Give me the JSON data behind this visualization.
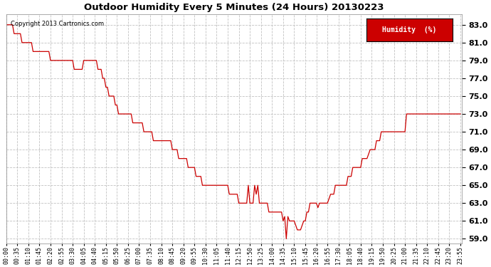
{
  "title": "Outdoor Humidity Every 5 Minutes (24 Hours) 20130223",
  "copyright": "Copyright 2013 Cartronics.com",
  "legend_label": "Humidity  (%)",
  "legend_bg": "#cc0000",
  "legend_text_color": "#ffffff",
  "line_color": "#cc0000",
  "bg_color": "#ffffff",
  "grid_color": "#bbbbbb",
  "ylim": [
    58.5,
    84.2
  ],
  "yticks": [
    59.0,
    61.0,
    63.0,
    65.0,
    67.0,
    69.0,
    71.0,
    73.0,
    75.0,
    77.0,
    79.0,
    81.0,
    83.0
  ],
  "xtick_labels": [
    "00:00",
    "00:35",
    "01:10",
    "01:45",
    "02:20",
    "02:55",
    "03:30",
    "04:05",
    "04:40",
    "05:15",
    "05:50",
    "06:25",
    "07:00",
    "07:35",
    "08:10",
    "08:45",
    "09:20",
    "09:55",
    "10:30",
    "11:05",
    "11:40",
    "12:15",
    "12:50",
    "13:25",
    "14:00",
    "14:35",
    "15:10",
    "15:45",
    "16:20",
    "16:55",
    "17:30",
    "18:05",
    "18:40",
    "19:15",
    "19:50",
    "20:25",
    "21:00",
    "21:35",
    "22:10",
    "22:45",
    "23:20",
    "23:55"
  ],
  "humidity_data": [
    [
      0,
      83.0
    ],
    [
      5,
      83.0
    ],
    [
      10,
      83.0
    ],
    [
      15,
      83.0
    ],
    [
      20,
      83.0
    ],
    [
      25,
      82.0
    ],
    [
      30,
      82.0
    ],
    [
      35,
      82.0
    ],
    [
      40,
      82.0
    ],
    [
      45,
      82.0
    ],
    [
      50,
      81.0
    ],
    [
      55,
      81.0
    ],
    [
      60,
      81.0
    ],
    [
      65,
      81.0
    ],
    [
      70,
      81.0
    ],
    [
      75,
      81.0
    ],
    [
      80,
      81.0
    ],
    [
      85,
      80.0
    ],
    [
      90,
      80.0
    ],
    [
      95,
      80.0
    ],
    [
      100,
      80.0
    ],
    [
      105,
      80.0
    ],
    [
      110,
      80.0
    ],
    [
      115,
      80.0
    ],
    [
      120,
      80.0
    ],
    [
      125,
      80.0
    ],
    [
      130,
      80.0
    ],
    [
      135,
      80.0
    ],
    [
      140,
      79.0
    ],
    [
      145,
      79.0
    ],
    [
      150,
      79.0
    ],
    [
      155,
      79.0
    ],
    [
      160,
      79.0
    ],
    [
      165,
      79.0
    ],
    [
      170,
      79.0
    ],
    [
      175,
      79.0
    ],
    [
      180,
      79.0
    ],
    [
      185,
      79.0
    ],
    [
      190,
      79.0
    ],
    [
      195,
      79.0
    ],
    [
      200,
      79.0
    ],
    [
      205,
      79.0
    ],
    [
      210,
      79.0
    ],
    [
      215,
      78.0
    ],
    [
      220,
      78.0
    ],
    [
      225,
      78.0
    ],
    [
      230,
      78.0
    ],
    [
      235,
      78.0
    ],
    [
      240,
      78.0
    ],
    [
      245,
      79.0
    ],
    [
      250,
      79.0
    ],
    [
      255,
      79.0
    ],
    [
      260,
      79.0
    ],
    [
      265,
      79.0
    ],
    [
      270,
      79.0
    ],
    [
      275,
      79.0
    ],
    [
      280,
      79.0
    ],
    [
      285,
      79.0
    ],
    [
      290,
      78.0
    ],
    [
      295,
      78.0
    ],
    [
      300,
      78.0
    ],
    [
      305,
      77.0
    ],
    [
      310,
      77.0
    ],
    [
      315,
      76.0
    ],
    [
      320,
      76.0
    ],
    [
      325,
      75.0
    ],
    [
      330,
      75.0
    ],
    [
      335,
      75.0
    ],
    [
      340,
      75.0
    ],
    [
      345,
      74.0
    ],
    [
      350,
      74.0
    ],
    [
      355,
      73.0
    ],
    [
      360,
      73.0
    ],
    [
      365,
      73.0
    ],
    [
      370,
      73.0
    ],
    [
      375,
      73.0
    ],
    [
      380,
      73.0
    ],
    [
      385,
      73.0
    ],
    [
      390,
      73.0
    ],
    [
      395,
      73.0
    ],
    [
      400,
      72.0
    ],
    [
      405,
      72.0
    ],
    [
      410,
      72.0
    ],
    [
      415,
      72.0
    ],
    [
      420,
      72.0
    ],
    [
      425,
      72.0
    ],
    [
      430,
      72.0
    ],
    [
      435,
      71.0
    ],
    [
      440,
      71.0
    ],
    [
      445,
      71.0
    ],
    [
      450,
      71.0
    ],
    [
      455,
      71.0
    ],
    [
      460,
      71.0
    ],
    [
      465,
      70.0
    ],
    [
      470,
      70.0
    ],
    [
      475,
      70.0
    ],
    [
      480,
      70.0
    ],
    [
      485,
      70.0
    ],
    [
      490,
      70.0
    ],
    [
      495,
      70.0
    ],
    [
      500,
      70.0
    ],
    [
      505,
      70.0
    ],
    [
      510,
      70.0
    ],
    [
      515,
      70.0
    ],
    [
      520,
      70.0
    ],
    [
      525,
      69.0
    ],
    [
      530,
      69.0
    ],
    [
      535,
      69.0
    ],
    [
      540,
      69.0
    ],
    [
      545,
      68.0
    ],
    [
      550,
      68.0
    ],
    [
      555,
      68.0
    ],
    [
      560,
      68.0
    ],
    [
      565,
      68.0
    ],
    [
      570,
      68.0
    ],
    [
      575,
      67.0
    ],
    [
      580,
      67.0
    ],
    [
      585,
      67.0
    ],
    [
      590,
      67.0
    ],
    [
      595,
      67.0
    ],
    [
      600,
      66.0
    ],
    [
      605,
      66.0
    ],
    [
      610,
      66.0
    ],
    [
      615,
      66.0
    ],
    [
      620,
      65.0
    ],
    [
      625,
      65.0
    ],
    [
      630,
      65.0
    ],
    [
      635,
      65.0
    ],
    [
      640,
      65.0
    ],
    [
      645,
      65.0
    ],
    [
      650,
      65.0
    ],
    [
      655,
      65.0
    ],
    [
      660,
      65.0
    ],
    [
      665,
      65.0
    ],
    [
      670,
      65.0
    ],
    [
      675,
      65.0
    ],
    [
      680,
      65.0
    ],
    [
      685,
      65.0
    ],
    [
      690,
      65.0
    ],
    [
      695,
      65.0
    ],
    [
      700,
      65.0
    ],
    [
      705,
      64.0
    ],
    [
      710,
      64.0
    ],
    [
      715,
      64.0
    ],
    [
      720,
      64.0
    ],
    [
      725,
      64.0
    ],
    [
      730,
      64.0
    ],
    [
      735,
      63.0
    ],
    [
      740,
      63.0
    ],
    [
      745,
      63.0
    ],
    [
      750,
      63.0
    ],
    [
      755,
      63.0
    ],
    [
      760,
      63.0
    ],
    [
      765,
      65.0
    ],
    [
      770,
      63.0
    ],
    [
      775,
      63.0
    ],
    [
      780,
      63.0
    ],
    [
      785,
      65.0
    ],
    [
      790,
      64.0
    ],
    [
      795,
      65.0
    ],
    [
      800,
      63.0
    ],
    [
      805,
      63.0
    ],
    [
      810,
      63.0
    ],
    [
      815,
      63.0
    ],
    [
      820,
      63.0
    ],
    [
      825,
      63.0
    ],
    [
      830,
      62.0
    ],
    [
      835,
      62.0
    ],
    [
      840,
      62.0
    ],
    [
      845,
      62.0
    ],
    [
      850,
      62.0
    ],
    [
      855,
      62.0
    ],
    [
      860,
      62.0
    ],
    [
      865,
      62.0
    ],
    [
      870,
      62.0
    ],
    [
      875,
      61.0
    ],
    [
      880,
      61.5
    ],
    [
      885,
      59.0
    ],
    [
      890,
      61.5
    ],
    [
      895,
      61.0
    ],
    [
      900,
      61.0
    ],
    [
      905,
      61.0
    ],
    [
      910,
      61.0
    ],
    [
      915,
      60.5
    ],
    [
      920,
      60.0
    ],
    [
      925,
      60.0
    ],
    [
      930,
      60.0
    ],
    [
      935,
      60.5
    ],
    [
      940,
      61.0
    ],
    [
      945,
      61.0
    ],
    [
      950,
      62.0
    ],
    [
      955,
      62.0
    ],
    [
      960,
      63.0
    ],
    [
      965,
      63.0
    ],
    [
      970,
      63.0
    ],
    [
      975,
      63.0
    ],
    [
      980,
      63.0
    ],
    [
      985,
      62.5
    ],
    [
      990,
      63.0
    ],
    [
      995,
      63.0
    ],
    [
      1000,
      63.0
    ],
    [
      1005,
      63.0
    ],
    [
      1010,
      63.0
    ],
    [
      1015,
      63.0
    ],
    [
      1020,
      63.5
    ],
    [
      1025,
      64.0
    ],
    [
      1030,
      64.0
    ],
    [
      1035,
      64.0
    ],
    [
      1040,
      65.0
    ],
    [
      1045,
      65.0
    ],
    [
      1050,
      65.0
    ],
    [
      1055,
      65.0
    ],
    [
      1060,
      65.0
    ],
    [
      1065,
      65.0
    ],
    [
      1070,
      65.0
    ],
    [
      1075,
      65.0
    ],
    [
      1080,
      66.0
    ],
    [
      1085,
      66.0
    ],
    [
      1090,
      66.0
    ],
    [
      1095,
      67.0
    ],
    [
      1100,
      67.0
    ],
    [
      1105,
      67.0
    ],
    [
      1110,
      67.0
    ],
    [
      1115,
      67.0
    ],
    [
      1120,
      67.0
    ],
    [
      1125,
      68.0
    ],
    [
      1130,
      68.0
    ],
    [
      1135,
      68.0
    ],
    [
      1140,
      68.0
    ],
    [
      1145,
      68.5
    ],
    [
      1150,
      69.0
    ],
    [
      1155,
      69.0
    ],
    [
      1160,
      69.0
    ],
    [
      1165,
      69.0
    ],
    [
      1170,
      70.0
    ],
    [
      1175,
      70.0
    ],
    [
      1180,
      70.0
    ],
    [
      1185,
      71.0
    ],
    [
      1190,
      71.0
    ],
    [
      1195,
      71.0
    ],
    [
      1200,
      71.0
    ],
    [
      1205,
      71.0
    ],
    [
      1210,
      71.0
    ],
    [
      1215,
      71.0
    ],
    [
      1220,
      71.0
    ],
    [
      1225,
      71.0
    ],
    [
      1230,
      71.0
    ],
    [
      1235,
      71.0
    ],
    [
      1240,
      71.0
    ],
    [
      1245,
      71.0
    ],
    [
      1250,
      71.0
    ],
    [
      1255,
      71.0
    ],
    [
      1260,
      71.0
    ],
    [
      1265,
      73.0
    ],
    [
      1270,
      73.0
    ],
    [
      1275,
      73.0
    ],
    [
      1280,
      73.0
    ],
    [
      1285,
      73.0
    ],
    [
      1290,
      73.0
    ],
    [
      1295,
      73.0
    ],
    [
      1300,
      73.0
    ],
    [
      1305,
      73.0
    ],
    [
      1310,
      73.0
    ],
    [
      1315,
      73.0
    ],
    [
      1320,
      73.0
    ],
    [
      1325,
      73.0
    ],
    [
      1330,
      73.0
    ],
    [
      1335,
      73.0
    ],
    [
      1340,
      73.0
    ],
    [
      1345,
      73.0
    ],
    [
      1350,
      73.0
    ],
    [
      1355,
      73.0
    ],
    [
      1360,
      73.0
    ],
    [
      1365,
      73.0
    ],
    [
      1370,
      73.0
    ],
    [
      1375,
      73.0
    ],
    [
      1380,
      73.0
    ],
    [
      1385,
      73.0
    ],
    [
      1390,
      73.0
    ],
    [
      1395,
      73.0
    ],
    [
      1400,
      73.0
    ],
    [
      1405,
      73.0
    ],
    [
      1410,
      73.0
    ],
    [
      1415,
      73.0
    ],
    [
      1420,
      73.0
    ],
    [
      1425,
      73.0
    ],
    [
      1430,
      73.0
    ],
    [
      1435,
      73.0
    ]
  ]
}
